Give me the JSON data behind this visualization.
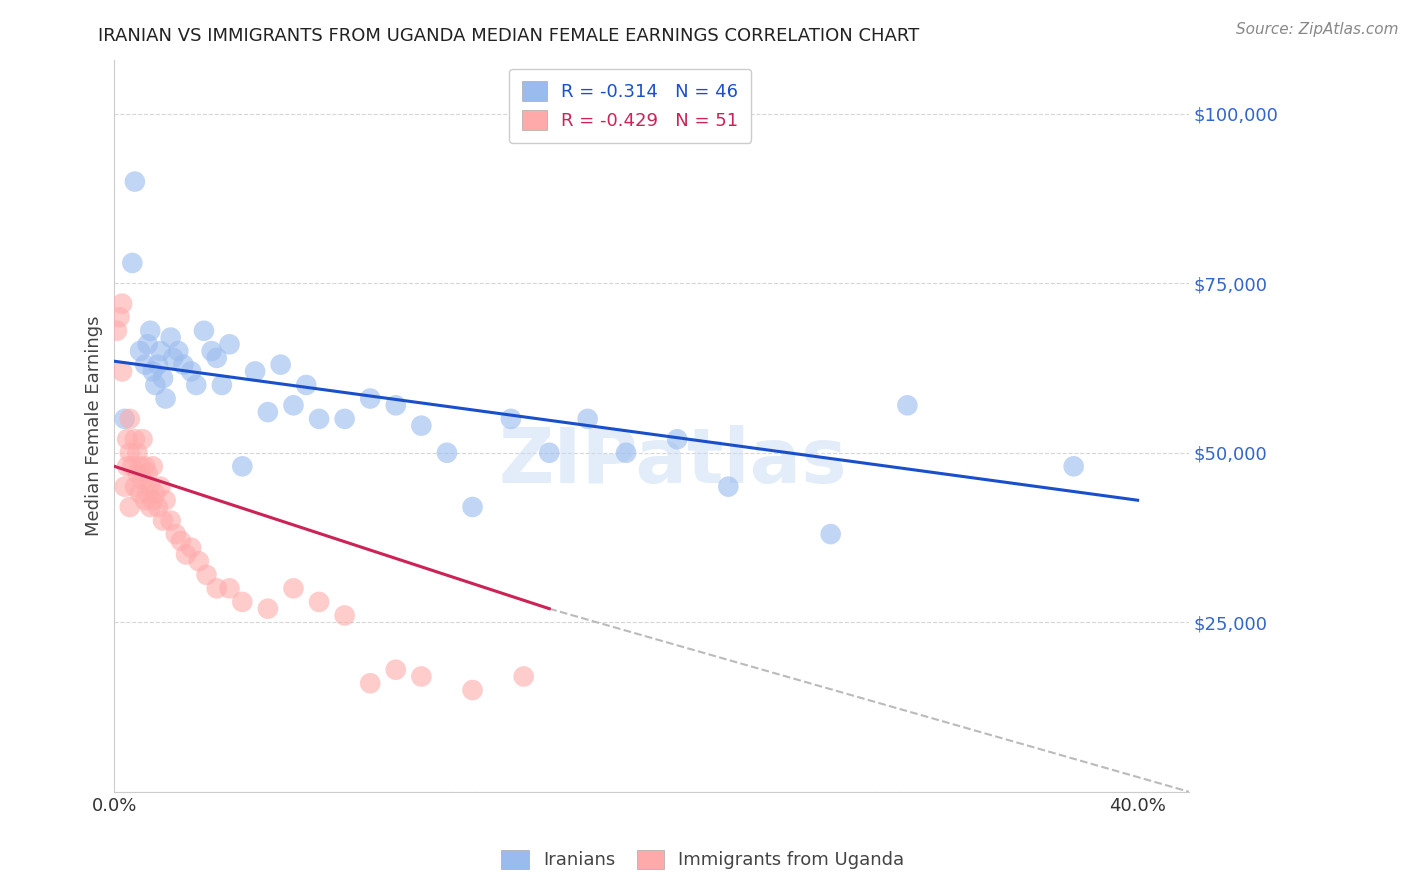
{
  "title": "IRANIAN VS IMMIGRANTS FROM UGANDA MEDIAN FEMALE EARNINGS CORRELATION CHART",
  "source": "Source: ZipAtlas.com",
  "ylabel": "Median Female Earnings",
  "watermark": "ZIPatlas",
  "y_ticks": [
    0,
    25000,
    50000,
    75000,
    100000
  ],
  "y_tick_labels": [
    "",
    "$25,000",
    "$50,000",
    "$75,000",
    "$100,000"
  ],
  "ylim": [
    0,
    108000
  ],
  "xlim": [
    0.0,
    0.42
  ],
  "legend_entry_blue": "R = -0.314   N = 46",
  "legend_entry_pink": "R = -0.429   N = 51",
  "legend_labels_bottom": [
    "Iranians",
    "Immigrants from Uganda"
  ],
  "iranians_x": [
    0.004,
    0.007,
    0.01,
    0.012,
    0.013,
    0.014,
    0.015,
    0.016,
    0.017,
    0.018,
    0.019,
    0.02,
    0.022,
    0.023,
    0.025,
    0.027,
    0.03,
    0.032,
    0.035,
    0.038,
    0.04,
    0.042,
    0.045,
    0.05,
    0.055,
    0.06,
    0.065,
    0.07,
    0.075,
    0.08,
    0.09,
    0.1,
    0.11,
    0.12,
    0.13,
    0.14,
    0.155,
    0.17,
    0.185,
    0.2,
    0.22,
    0.24,
    0.28,
    0.31,
    0.375,
    0.008
  ],
  "iranians_y": [
    55000,
    78000,
    65000,
    63000,
    66000,
    68000,
    62000,
    60000,
    63000,
    65000,
    61000,
    58000,
    67000,
    64000,
    65000,
    63000,
    62000,
    60000,
    68000,
    65000,
    64000,
    60000,
    66000,
    48000,
    62000,
    56000,
    63000,
    57000,
    60000,
    55000,
    55000,
    58000,
    57000,
    54000,
    50000,
    42000,
    55000,
    50000,
    55000,
    50000,
    52000,
    45000,
    38000,
    57000,
    48000,
    90000
  ],
  "uganda_x": [
    0.001,
    0.002,
    0.003,
    0.004,
    0.005,
    0.005,
    0.006,
    0.006,
    0.007,
    0.008,
    0.008,
    0.009,
    0.009,
    0.01,
    0.01,
    0.011,
    0.011,
    0.012,
    0.012,
    0.013,
    0.013,
    0.014,
    0.014,
    0.015,
    0.015,
    0.016,
    0.017,
    0.018,
    0.019,
    0.02,
    0.022,
    0.024,
    0.026,
    0.028,
    0.03,
    0.033,
    0.036,
    0.04,
    0.045,
    0.05,
    0.06,
    0.07,
    0.08,
    0.09,
    0.1,
    0.11,
    0.12,
    0.14,
    0.16,
    0.003,
    0.006
  ],
  "uganda_y": [
    68000,
    70000,
    72000,
    45000,
    52000,
    48000,
    50000,
    55000,
    48000,
    52000,
    45000,
    50000,
    47000,
    48000,
    44000,
    52000,
    46000,
    48000,
    43000,
    47000,
    44000,
    45000,
    42000,
    48000,
    43000,
    44000,
    42000,
    45000,
    40000,
    43000,
    40000,
    38000,
    37000,
    35000,
    36000,
    34000,
    32000,
    30000,
    30000,
    28000,
    27000,
    30000,
    28000,
    26000,
    16000,
    18000,
    17000,
    15000,
    17000,
    62000,
    42000
  ],
  "blue_line_x0": 0.0,
  "blue_line_x1": 0.4,
  "blue_line_y0": 63500,
  "blue_line_y1": 43000,
  "pink_line_x0": 0.0,
  "pink_line_x1": 0.17,
  "pink_line_y0": 48000,
  "pink_line_y1": 27000,
  "dash_line_x0": 0.17,
  "dash_line_x1": 0.42,
  "dash_line_y0": 27000,
  "dash_line_y1": 0,
  "blue_line_color": "#1a4fcc",
  "pink_line_color": "#cc2255",
  "dashed_line_color": "#bbbbbb",
  "scatter_blue": "#99bbee",
  "scatter_pink": "#ffaaaa",
  "bg_color": "#ffffff",
  "grid_color": "#cccccc",
  "title_color": "#222222",
  "axis_label_color": "#444444",
  "ytick_color": "#3366cc",
  "source_color": "#888888"
}
